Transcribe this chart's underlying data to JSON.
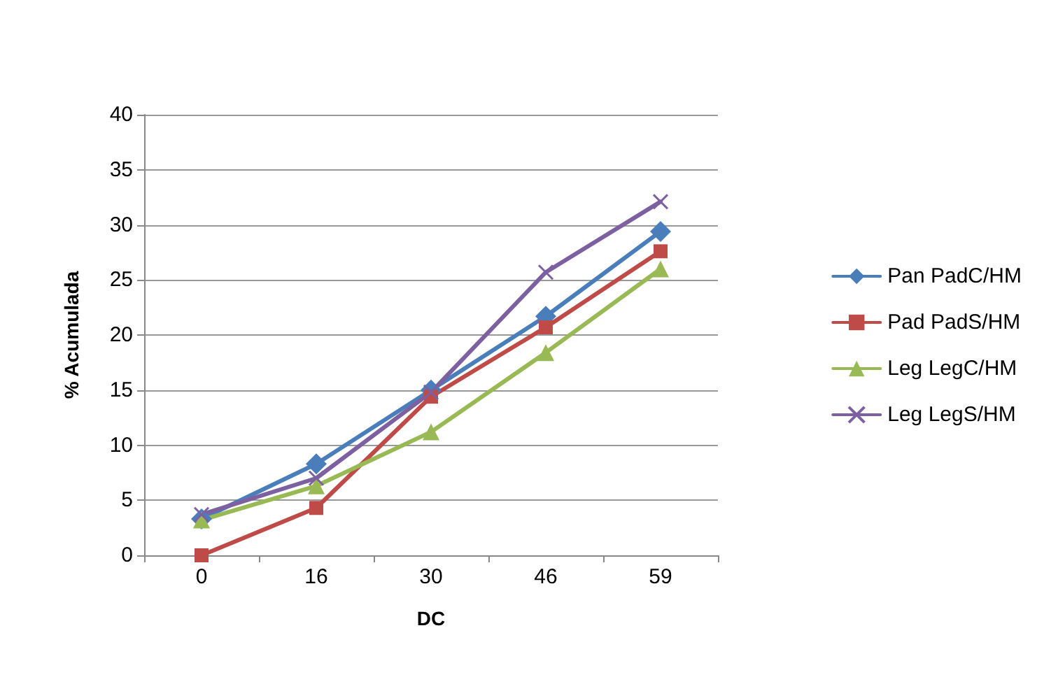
{
  "chart_data": {
    "type": "line",
    "xlabel": "DC",
    "ylabel": "% Acumulada",
    "categories": [
      "0",
      "16",
      "30",
      "46",
      "59"
    ],
    "series": [
      {
        "name": "Pan PadC/HM",
        "color": "#4a7ebb",
        "marker": "diamond",
        "values": [
          3.3,
          8.3,
          15.0,
          21.7,
          29.4
        ]
      },
      {
        "name": "Pad PadS/HM",
        "color": "#be4b48",
        "marker": "square",
        "values": [
          0,
          4.3,
          14.4,
          20.7,
          27.6
        ]
      },
      {
        "name": "Leg LegC/HM",
        "color": "#98b954",
        "marker": "triangle",
        "values": [
          3.2,
          6.3,
          11.2,
          18.4,
          26.0
        ]
      },
      {
        "name": "Leg LegS/HM",
        "color": "#7d60a0",
        "marker": "cross",
        "values": [
          3.7,
          7.0,
          14.8,
          25.7,
          32.1
        ]
      }
    ],
    "ylim": [
      0,
      40
    ],
    "yticks": [
      0,
      5,
      10,
      15,
      20,
      25,
      30,
      35,
      40
    ],
    "grid": "y",
    "legend": "right",
    "line_style": "solid"
  }
}
